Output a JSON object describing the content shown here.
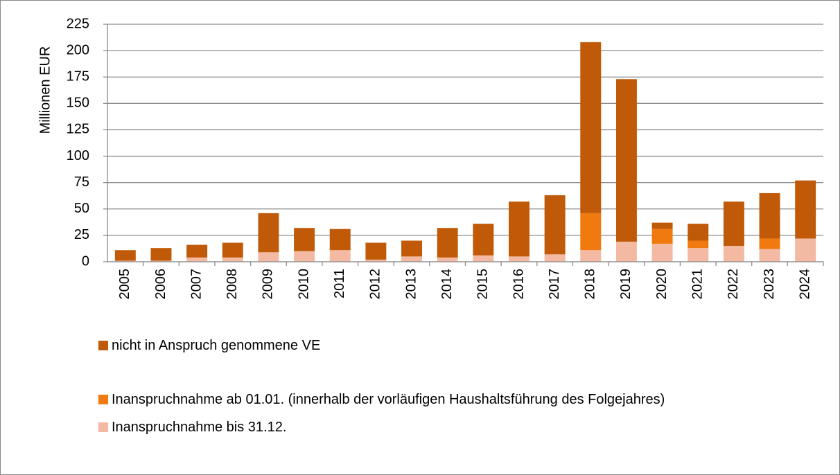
{
  "chart_data": {
    "type": "stacked_bar",
    "y_label": "Millionen EUR",
    "categories": [
      "2005",
      "2006",
      "2007",
      "2008",
      "2009",
      "2010",
      "2011",
      "2012",
      "2013",
      "2014",
      "2015",
      "2016",
      "2017",
      "2018",
      "2019",
      "2020",
      "2021",
      "2022",
      "2023",
      "2024"
    ],
    "series": [
      {
        "name": "nicht in Anspruch genommene VE",
        "color": "#c05a08",
        "values": [
          10,
          12,
          12,
          14,
          37,
          22,
          20,
          16,
          15,
          28,
          30,
          52,
          56,
          162,
          154,
          6,
          16,
          42,
          43,
          55
        ]
      },
      {
        "name": "Inanspruchnahme ab 01.01. (innerhalb der vorläufigen Haushaltsführung des Folgejahres)",
        "color": "#f07a10",
        "values": [
          0,
          0,
          0,
          0,
          0,
          0,
          0,
          0,
          0,
          0,
          0,
          0,
          0,
          35,
          0,
          14,
          7,
          0,
          10,
          0
        ]
      },
      {
        "name": "Inanspruchnahme bis 31.12.",
        "color": "#f4b9a2",
        "values": [
          1,
          1,
          4,
          4,
          9,
          10,
          11,
          2,
          5,
          4,
          6,
          5,
          7,
          11,
          19,
          17,
          13,
          15,
          12,
          22
        ]
      }
    ],
    "ylim": [
      0,
      225
    ],
    "yticks": [
      0,
      25,
      50,
      75,
      100,
      125,
      150,
      175,
      200,
      225
    ],
    "grid": true
  }
}
